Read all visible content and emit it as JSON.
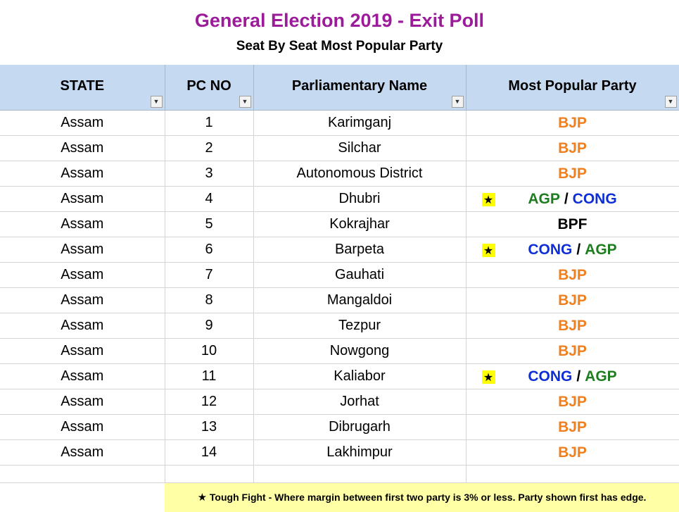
{
  "title": "General Election 2019 - Exit Poll",
  "subtitle": "Seat By Seat Most Popular Party",
  "columns": [
    "STATE",
    "PC NO",
    "Parliamentary Name",
    "Most Popular Party"
  ],
  "filter_icons": [
    "filter-active-icon",
    "dropdown-arrow-icon",
    "dropdown-arrow-icon",
    "dropdown-arrow-icon"
  ],
  "colors": {
    "BJP": "#f07f1e",
    "CONG": "#0f2fd6",
    "AGP": "#1e7d1e",
    "BPF": "#000000",
    "title": "#9b1b9b",
    "header_bg": "#c5d9f1",
    "legend_bg": "#ffffa6"
  },
  "rows": [
    {
      "state": "Assam",
      "pc": "1",
      "name": "Karimganj",
      "tough": false,
      "party1": "BJP",
      "sep": "",
      "party2": ""
    },
    {
      "state": "Assam",
      "pc": "2",
      "name": "Silchar",
      "tough": false,
      "party1": "BJP",
      "sep": "",
      "party2": ""
    },
    {
      "state": "Assam",
      "pc": "3",
      "name": "Autonomous District",
      "tough": false,
      "party1": "BJP",
      "sep": "",
      "party2": ""
    },
    {
      "state": "Assam",
      "pc": "4",
      "name": "Dhubri",
      "tough": true,
      "party1": "AGP",
      "sep": "/",
      "party2": "CONG"
    },
    {
      "state": "Assam",
      "pc": "5",
      "name": "Kokrajhar",
      "tough": false,
      "party1": "BPF",
      "sep": "",
      "party2": ""
    },
    {
      "state": "Assam",
      "pc": "6",
      "name": "Barpeta",
      "tough": true,
      "party1": "CONG",
      "sep": "/",
      "party2": "AGP"
    },
    {
      "state": "Assam",
      "pc": "7",
      "name": "Gauhati",
      "tough": false,
      "party1": "BJP",
      "sep": "",
      "party2": ""
    },
    {
      "state": "Assam",
      "pc": "8",
      "name": "Mangaldoi",
      "tough": false,
      "party1": "BJP",
      "sep": "",
      "party2": ""
    },
    {
      "state": "Assam",
      "pc": "9",
      "name": "Tezpur",
      "tough": false,
      "party1": "BJP",
      "sep": "",
      "party2": ""
    },
    {
      "state": "Assam",
      "pc": "10",
      "name": "Nowgong",
      "tough": false,
      "party1": "BJP",
      "sep": "",
      "party2": ""
    },
    {
      "state": "Assam",
      "pc": "11",
      "name": "Kaliabor",
      "tough": true,
      "party1": "CONG",
      "sep": "/",
      "party2": "AGP"
    },
    {
      "state": "Assam",
      "pc": "12",
      "name": "Jorhat",
      "tough": false,
      "party1": "BJP",
      "sep": "",
      "party2": ""
    },
    {
      "state": "Assam",
      "pc": "13",
      "name": "Dibrugarh",
      "tough": false,
      "party1": "BJP",
      "sep": "",
      "party2": ""
    },
    {
      "state": "Assam",
      "pc": "14",
      "name": "Lakhimpur",
      "tough": false,
      "party1": "BJP",
      "sep": "",
      "party2": ""
    }
  ],
  "star_symbol": "★",
  "legend": {
    "star": "★",
    "text": "Tough Fight - Where margin between first two party is 3% or less. Party shown first has edge."
  }
}
